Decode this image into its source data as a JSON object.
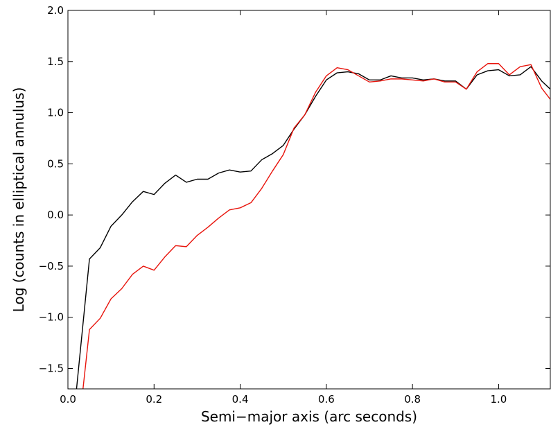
{
  "chart_data": {
    "type": "line",
    "title": "",
    "xlabel": "Semi−major axis (arc seconds)",
    "ylabel": "Log (counts in elliptical annulus)",
    "xlim": [
      0.0,
      1.12
    ],
    "ylim": [
      -1.7,
      2.0
    ],
    "xticks": [
      0.0,
      0.2,
      0.4,
      0.6,
      0.8,
      1.0
    ],
    "xtick_labels": [
      "0.0",
      "0.2",
      "0.4",
      "0.6",
      "0.8",
      "1.0"
    ],
    "yticks": [
      -1.5,
      -1.0,
      -0.5,
      0.0,
      0.5,
      1.0,
      1.5,
      2.0
    ],
    "ytick_labels": [
      "−1.5",
      "−1.0",
      "−0.5",
      "0.0",
      "0.5",
      "1.0",
      "1.5",
      "2.0"
    ],
    "grid": false,
    "legend": "none",
    "series": [
      {
        "color": "#000000",
        "x": [
          0.02,
          0.05,
          0.075,
          0.1,
          0.125,
          0.15,
          0.175,
          0.2,
          0.225,
          0.25,
          0.275,
          0.3,
          0.325,
          0.35,
          0.375,
          0.4,
          0.425,
          0.45,
          0.475,
          0.5,
          0.525,
          0.55,
          0.575,
          0.6,
          0.625,
          0.65,
          0.675,
          0.7,
          0.725,
          0.75,
          0.775,
          0.8,
          0.825,
          0.85,
          0.875,
          0.9,
          0.925,
          0.95,
          0.975,
          1.0,
          1.025,
          1.05,
          1.075,
          1.1,
          1.12
        ],
        "y": [
          -1.7,
          -0.43,
          -0.32,
          -0.11,
          0.0,
          0.13,
          0.23,
          0.2,
          0.31,
          0.39,
          0.32,
          0.35,
          0.35,
          0.41,
          0.44,
          0.42,
          0.43,
          0.54,
          0.6,
          0.68,
          0.84,
          0.98,
          1.16,
          1.32,
          1.39,
          1.4,
          1.38,
          1.32,
          1.32,
          1.36,
          1.34,
          1.34,
          1.32,
          1.33,
          1.31,
          1.31,
          1.23,
          1.37,
          1.41,
          1.42,
          1.36,
          1.37,
          1.45,
          1.31,
          1.23
        ]
      },
      {
        "color": "#e8140c",
        "x": [
          0.035,
          0.05,
          0.075,
          0.1,
          0.125,
          0.15,
          0.175,
          0.2,
          0.225,
          0.25,
          0.275,
          0.3,
          0.325,
          0.35,
          0.375,
          0.4,
          0.425,
          0.45,
          0.475,
          0.5,
          0.525,
          0.55,
          0.575,
          0.6,
          0.625,
          0.65,
          0.675,
          0.7,
          0.725,
          0.75,
          0.775,
          0.8,
          0.825,
          0.85,
          0.875,
          0.9,
          0.925,
          0.95,
          0.975,
          1.0,
          1.025,
          1.05,
          1.075,
          1.1,
          1.12
        ],
        "y": [
          -1.7,
          -1.12,
          -1.01,
          -0.82,
          -0.72,
          -0.58,
          -0.5,
          -0.54,
          -0.41,
          -0.3,
          -0.31,
          -0.2,
          -0.12,
          -0.03,
          0.05,
          0.07,
          0.12,
          0.26,
          0.43,
          0.59,
          0.85,
          0.98,
          1.2,
          1.36,
          1.44,
          1.42,
          1.36,
          1.3,
          1.31,
          1.33,
          1.33,
          1.32,
          1.31,
          1.33,
          1.3,
          1.3,
          1.23,
          1.4,
          1.48,
          1.48,
          1.37,
          1.45,
          1.47,
          1.24,
          1.13
        ]
      }
    ]
  }
}
